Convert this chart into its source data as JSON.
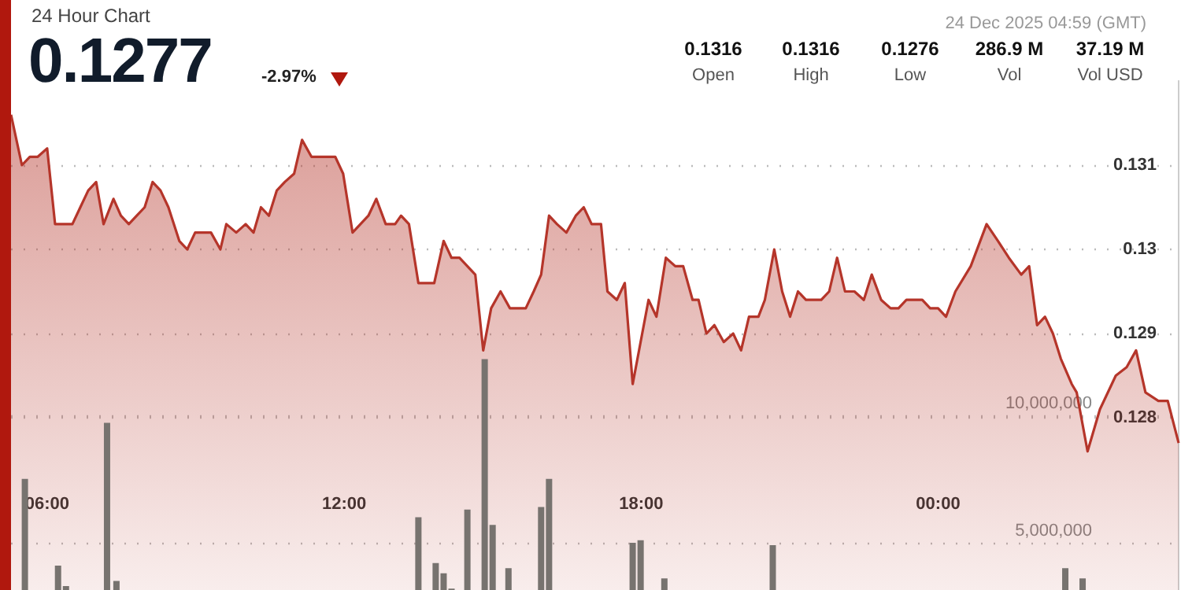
{
  "chart_data": {
    "type": "area",
    "title": "24 Hour Chart",
    "subtitle": "24 Dec 2025 04:59 (GMT)",
    "annotations": [
      "0.1277",
      "-2.97%",
      "0.1316",
      "Open",
      "0.1316",
      "High",
      "0.1276",
      "Low",
      "286.9 M",
      "Vol",
      "37.19 M",
      "Vol USD"
    ],
    "series": [
      {
        "color": "#b5352a",
        "x": [
          5.27,
          5.49,
          5.65,
          5.81,
          6.0,
          6.16,
          6.35,
          6.51,
          6.67,
          6.83,
          6.99,
          7.14,
          7.34,
          7.49,
          7.65,
          7.81,
          7.97,
          8.13,
          8.29,
          8.45,
          8.67,
          8.83,
          8.99,
          9.15,
          9.31,
          9.5,
          9.62,
          9.82,
          10.01,
          10.17,
          10.32,
          10.48,
          10.64,
          10.8,
          10.99,
          11.15,
          11.34,
          11.53,
          11.69,
          11.82,
          11.98,
          12.17,
          12.33,
          12.49,
          12.65,
          12.84,
          13.03,
          13.15,
          13.31,
          13.5,
          13.66,
          13.82,
          14.01,
          14.17,
          14.33,
          14.49,
          14.65,
          14.81,
          14.97,
          15.16,
          15.35,
          15.51,
          15.67,
          15.83,
          15.98,
          16.14,
          16.3,
          16.49,
          16.68,
          16.84,
          17.0,
          17.19,
          17.32,
          17.51,
          17.67,
          17.83,
          17.99,
          18.15,
          18.31,
          18.5,
          18.69,
          18.85,
          19.04,
          19.16,
          19.32,
          19.48,
          19.67,
          19.86,
          20.02,
          20.18,
          20.37,
          20.5,
          20.69,
          20.85,
          21.01,
          21.17,
          21.33,
          21.64,
          21.8,
          21.96,
          22.12,
          22.31,
          22.5,
          22.66,
          22.85,
          23.04,
          23.2,
          23.36,
          23.55,
          23.68,
          23.84,
          24.0,
          24.16,
          24.35,
          24.66,
          24.98,
          25.21,
          25.43,
          25.68,
          25.84,
          26.0,
          26.16,
          26.32,
          26.48,
          26.7,
          26.8,
          27.02,
          27.27,
          27.59,
          27.81,
          28.0,
          28.19,
          28.45,
          28.64,
          28.86
        ],
        "values": [
          0.1316,
          0.131,
          0.1311,
          0.1311,
          0.1312,
          0.1303,
          0.1303,
          0.1303,
          0.1305,
          0.1307,
          0.1308,
          0.1303,
          0.1306,
          0.1304,
          0.1303,
          0.1304,
          0.1305,
          0.1308,
          0.1307,
          0.1305,
          0.1301,
          0.13,
          0.1302,
          0.1302,
          0.1302,
          0.13,
          0.1303,
          0.1302,
          0.1303,
          0.1302,
          0.1305,
          0.1304,
          0.1307,
          0.1308,
          0.1309,
          0.1313,
          0.1311,
          0.1311,
          0.1311,
          0.1311,
          0.1309,
          0.1302,
          0.1303,
          0.1304,
          0.1306,
          0.1303,
          0.1303,
          0.1304,
          0.1303,
          0.1296,
          0.1296,
          0.1296,
          0.1301,
          0.1299,
          0.1299,
          0.1298,
          0.1297,
          0.1288,
          0.1293,
          0.1295,
          0.1293,
          0.1293,
          0.1293,
          0.1295,
          0.1297,
          0.1304,
          0.1303,
          0.1302,
          0.1304,
          0.1305,
          0.1303,
          0.1303,
          0.1295,
          0.1294,
          0.1296,
          0.1284,
          0.1289,
          0.1294,
          0.1292,
          0.1299,
          0.1298,
          0.1298,
          0.1294,
          0.1294,
          0.129,
          0.1291,
          0.1289,
          0.129,
          0.1288,
          0.1292,
          0.1292,
          0.1294,
          0.13,
          0.1295,
          0.1292,
          0.1295,
          0.1294,
          0.1294,
          0.1295,
          0.1299,
          0.1295,
          0.1295,
          0.1294,
          0.1297,
          0.1294,
          0.1293,
          0.1293,
          0.1294,
          0.1294,
          0.1294,
          0.1293,
          0.1293,
          0.1292,
          0.1295,
          0.1298,
          0.1303,
          0.1301,
          0.1299,
          0.1297,
          0.1298,
          0.1291,
          0.1292,
          0.129,
          0.1287,
          0.1284,
          0.1283,
          0.1276,
          0.1281,
          0.1285,
          0.1286,
          0.1288,
          0.1283,
          0.1282,
          0.1282,
          0.1277
        ]
      },
      {
        "type": "bar",
        "axis": "y2",
        "color": "#77736f",
        "x": [
          5.55,
          6.22,
          6.38,
          7.21,
          7.4,
          13.5,
          13.85,
          14.01,
          14.17,
          14.49,
          14.84,
          15.0,
          15.32,
          15.98,
          16.14,
          17.83,
          17.99,
          18.47,
          20.66,
          26.57,
          26.92
        ],
        "values": [
          7500000,
          4100000,
          3300000,
          9700000,
          3500000,
          6000000,
          4200000,
          3800000,
          3200000,
          6300000,
          12200000,
          5700000,
          4000000,
          6400000,
          7500000,
          5000000,
          5100000,
          3600000,
          4900000,
          4000000,
          3600000
        ]
      }
    ],
    "xlim": [
      5.27,
      28.86
    ],
    "xticks": [
      {
        "value": 6,
        "label": "06:00"
      },
      {
        "value": 12,
        "label": "12:00"
      },
      {
        "value": 18,
        "label": "18:00"
      },
      {
        "value": 24,
        "label": "00:00"
      }
    ],
    "ylim": [
      0.125,
      0.132
    ],
    "yticks": [
      0.128,
      0.129,
      0.13,
      0.131
    ],
    "y2lim": [
      0,
      23100000
    ],
    "y2ticks": [
      {
        "value": 5000000,
        "label": "5,000,000"
      },
      {
        "value": 10000000,
        "label": "10,000,000"
      }
    ],
    "grid": "y"
  }
}
